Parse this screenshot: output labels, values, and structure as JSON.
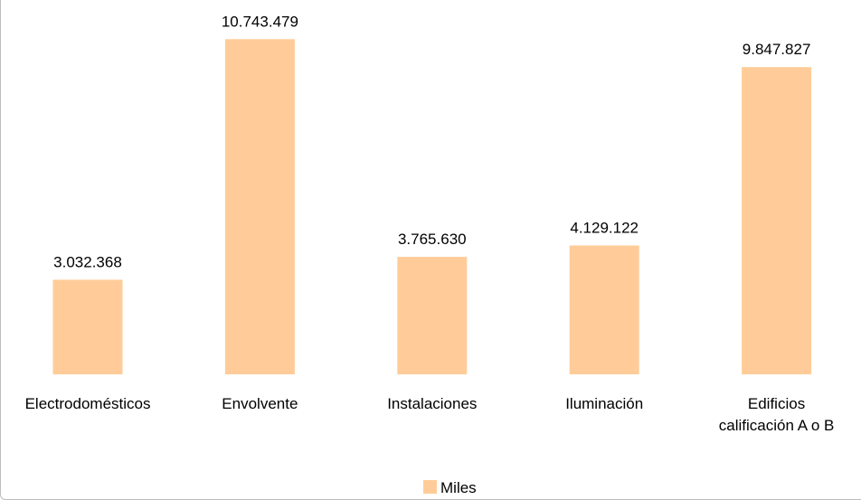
{
  "chart_data": {
    "type": "bar",
    "categories": [
      [
        "Electrodomésticos"
      ],
      [
        "Envolvente"
      ],
      [
        "Instalaciones"
      ],
      [
        "Iluminación"
      ],
      [
        "Edificios",
        "calificación A o B"
      ]
    ],
    "series": [
      {
        "name": "Miles",
        "values": [
          3032368,
          10743479,
          3765630,
          4129122,
          9847827
        ],
        "labels": [
          "3.032.368",
          "10.743.479",
          "3.765.630",
          "4.129.122",
          "9.847.827"
        ],
        "color": "#FFCC99"
      }
    ],
    "ylim": [
      0,
      12000000
    ],
    "grid": false,
    "legend": "bottom-center"
  }
}
